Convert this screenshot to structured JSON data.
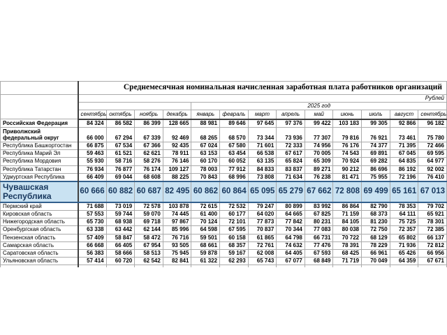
{
  "table": {
    "title": "Среднемесячная номинальная начисленная заработная плата работников организаций",
    "units_label": "Рублей",
    "year_label": "2025 год",
    "months": [
      "сентябрь",
      "октябрь",
      "ноябрь",
      "декабрь",
      "январь",
      "февраль",
      "март",
      "апрель",
      "май",
      "июнь",
      "июль",
      "август",
      "сентябрь"
    ],
    "rows": [
      {
        "region": "Российская Федерация",
        "bold": true,
        "values": [
          "84 324",
          "86 582",
          "86 399",
          "128 665",
          "88 981",
          "89 646",
          "97 645",
          "97 376",
          "99 422",
          "103 183",
          "99 305",
          "92 866",
          "96 182"
        ]
      },
      {
        "region": "Приволжский федеральный округ",
        "bold": true,
        "two_line": true,
        "values": [
          "66 000",
          "67 294",
          "67 339",
          "92 469",
          "68 265",
          "68 570",
          "73 344",
          "73 936",
          "77 307",
          "79 816",
          "76 921",
          "73 461",
          "75 780"
        ]
      },
      {
        "region": "Республика Башкортостан",
        "values": [
          "66 875",
          "67 534",
          "67 366",
          "92 435",
          "67 024",
          "67 580",
          "71 601",
          "72 333",
          "74 956",
          "76 176",
          "74 377",
          "71 395",
          "72 466"
        ]
      },
      {
        "region": "Республика Марий Эл",
        "values": [
          "59 463",
          "61 521",
          "62 621",
          "78 911",
          "63 153",
          "63 454",
          "66 538",
          "67 617",
          "70 005",
          "74 543",
          "69 891",
          "67 045",
          "69 595"
        ]
      },
      {
        "region": "Республика Мордовия",
        "values": [
          "55 930",
          "58 716",
          "58 276",
          "76 146",
          "60 170",
          "60 052",
          "63 135",
          "65 824",
          "65 309",
          "70 924",
          "69 282",
          "64 835",
          "64 977"
        ]
      },
      {
        "region": "Республика Татарстан",
        "values": [
          "76 934",
          "76 877",
          "76 174",
          "109 127",
          "78 003",
          "77 912",
          "84 833",
          "83 837",
          "89 271",
          "90 212",
          "86 696",
          "86 192",
          "92 002"
        ]
      },
      {
        "region": "Удмуртская Республика",
        "values": [
          "66 409",
          "69 044",
          "68 608",
          "88 225",
          "70 843",
          "68 996",
          "73 808",
          "71 634",
          "76 238",
          "81 471",
          "75 955",
          "72 196",
          "76 410"
        ]
      },
      {
        "region": "Чувашская Республика",
        "highlight": true,
        "values": [
          "60 666",
          "60 882",
          "60 687",
          "82 495",
          "60 862",
          "60 864",
          "65 095",
          "65 279",
          "67 662",
          "72 808",
          "69 499",
          "65 161",
          "67 013"
        ]
      },
      {
        "region": "Пермский край",
        "values": [
          "71 688",
          "73 019",
          "72 578",
          "103 878",
          "72 615",
          "72 532",
          "79 247",
          "80 899",
          "83 992",
          "86 864",
          "82 790",
          "78 353",
          "79 702"
        ]
      },
      {
        "region": "Кировская область",
        "values": [
          "57 553",
          "59 744",
          "59 070",
          "74 445",
          "61 400",
          "60 177",
          "64 020",
          "64 665",
          "67 825",
          "71 159",
          "68 373",
          "64 111",
          "65 921"
        ]
      },
      {
        "region": "Нижегородская область",
        "values": [
          "65 730",
          "68 938",
          "69 718",
          "97 867",
          "70 124",
          "72 101",
          "77 873",
          "77 842",
          "80 231",
          "84 105",
          "81 230",
          "75 725",
          "78 301"
        ]
      },
      {
        "region": "Оренбургская область",
        "values": [
          "63 338",
          "63 442",
          "62 144",
          "85 996",
          "64 598",
          "67 595",
          "70 837",
          "70 344",
          "77 083",
          "80 038",
          "72 750",
          "72 357",
          "72 385"
        ]
      },
      {
        "region": "Пензенская область",
        "values": [
          "57 409",
          "58 847",
          "58 472",
          "76 716",
          "59 501",
          "60 158",
          "61 865",
          "64 798",
          "66 731",
          "70 722",
          "68 129",
          "65 802",
          "66 137"
        ]
      },
      {
        "region": "Самарская область",
        "values": [
          "66 668",
          "66 405",
          "67 954",
          "93 505",
          "68 661",
          "68 357",
          "72 761",
          "74 632",
          "77 476",
          "78 391",
          "78 229",
          "71 936",
          "72 812"
        ]
      },
      {
        "region": "Саратовская область",
        "values": [
          "56 383",
          "58 666",
          "58 513",
          "75 945",
          "59 878",
          "59 167",
          "62 008",
          "64 405",
          "67 593",
          "68 425",
          "66 961",
          "65 426",
          "66 956"
        ]
      },
      {
        "region": "Ульяновская область",
        "values": [
          "57 414",
          "60 720",
          "62 542",
          "82 841",
          "61 322",
          "62 293",
          "65 743",
          "67 077",
          "68 849",
          "71 719",
          "70 049",
          "64 359",
          "67 671"
        ]
      },
      {
        "region": "",
        "cutoff": true,
        "values": []
      }
    ]
  },
  "colors": {
    "highlight_bg": "#c9e2f2",
    "highlight_text": "#17375d",
    "highlight_border": "#33608d",
    "grid_line": "#ababab",
    "dark_line": "#404040"
  }
}
